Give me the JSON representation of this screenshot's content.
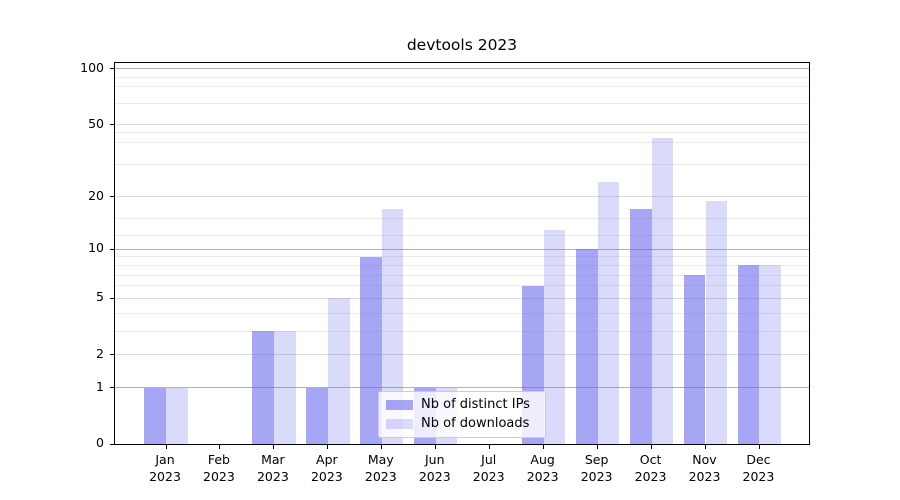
{
  "chart_data": {
    "type": "bar",
    "title": "devtools 2023",
    "categories": [
      {
        "month": "Jan",
        "year": "2023"
      },
      {
        "month": "Feb",
        "year": "2023"
      },
      {
        "month": "Mar",
        "year": "2023"
      },
      {
        "month": "Apr",
        "year": "2023"
      },
      {
        "month": "May",
        "year": "2023"
      },
      {
        "month": "Jun",
        "year": "2023"
      },
      {
        "month": "Jul",
        "year": "2023"
      },
      {
        "month": "Aug",
        "year": "2023"
      },
      {
        "month": "Sep",
        "year": "2023"
      },
      {
        "month": "Oct",
        "year": "2023"
      },
      {
        "month": "Nov",
        "year": "2023"
      },
      {
        "month": "Dec",
        "year": "2023"
      }
    ],
    "series": [
      {
        "name": "Nb of distinct IPs",
        "color": "rgba(102,102,238,0.58)",
        "values": [
          1,
          0,
          3,
          1,
          9,
          1,
          0,
          6,
          10,
          17,
          7,
          8
        ]
      },
      {
        "name": "Nb of downloads",
        "color": "rgba(102,102,238,0.24)",
        "values": [
          1,
          0,
          3,
          5,
          17,
          1,
          0,
          13,
          24,
          42,
          19,
          8
        ]
      }
    ],
    "y_axis": {
      "scale": "log1p",
      "major_ticks": [
        0,
        1,
        2,
        5,
        10,
        20,
        50,
        100
      ],
      "minor_gridline_values": [
        3,
        4,
        6,
        7,
        8,
        9,
        12,
        15,
        30,
        40,
        45,
        65,
        80,
        90
      ],
      "emphasized_gridline_values": [
        1,
        10,
        100
      ],
      "max_value": 110
    },
    "xlabel": "",
    "ylabel": "",
    "grid": true,
    "legend_position": "lower-center"
  },
  "colors": {
    "bar_base": "#6666ee",
    "grid_major": "#dbdbdb",
    "grid_emphasized": "#b2b2b2",
    "grid_minor": "#ebebeb",
    "spine": "#000000",
    "legend_border": "#cccccc",
    "background": "#ffffff"
  }
}
